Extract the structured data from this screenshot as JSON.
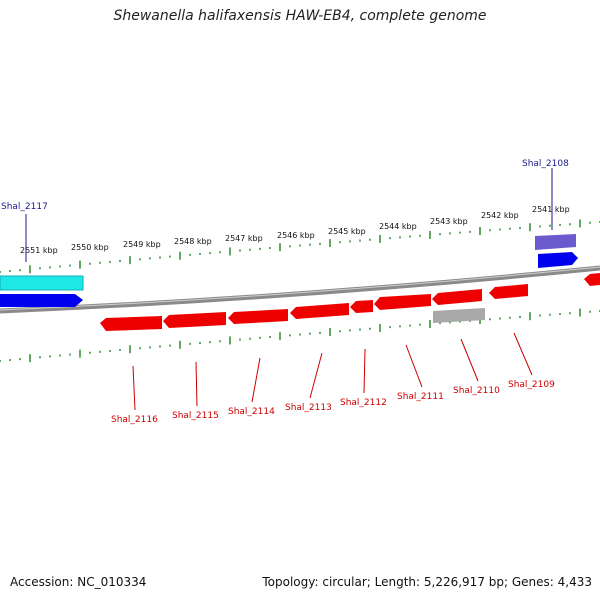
{
  "title": "Shewanella halifaxensis HAW-EB4, complete genome",
  "footer": {
    "accession": "Accession: NC_010334",
    "summary": "Topology: circular; Length: 5,226,917 bp; Genes: 4,433"
  },
  "colors": {
    "backbone": "#808080",
    "ticks": "#2e8b2e",
    "reverse_gene": "#ee0000",
    "forward_gene": "#0000ee",
    "forward_label": "#1a1a8c",
    "reverse_label": "#cc0000",
    "cyan_feature": "#1ee8e8",
    "purple_feature": "#6a5acd",
    "gray_feature": "#a8a8a8"
  },
  "kbp_ticks": [
    "2551 kbp",
    "2550 kbp",
    "2549 kbp",
    "2548 kbp",
    "2547 kbp",
    "2546 kbp",
    "2545 kbp",
    "2544 kbp",
    "2543 kbp",
    "2542 kbp",
    "2541 kbp"
  ],
  "gene_labels_top": [
    "Shal_2117",
    "Shal_2108"
  ],
  "gene_labels_bottom": [
    "Shal_2116",
    "Shal_2115",
    "Shal_2114",
    "Shal_2113",
    "Shal_2112",
    "Shal_2111",
    "Shal_2110",
    "Shal_2109"
  ]
}
